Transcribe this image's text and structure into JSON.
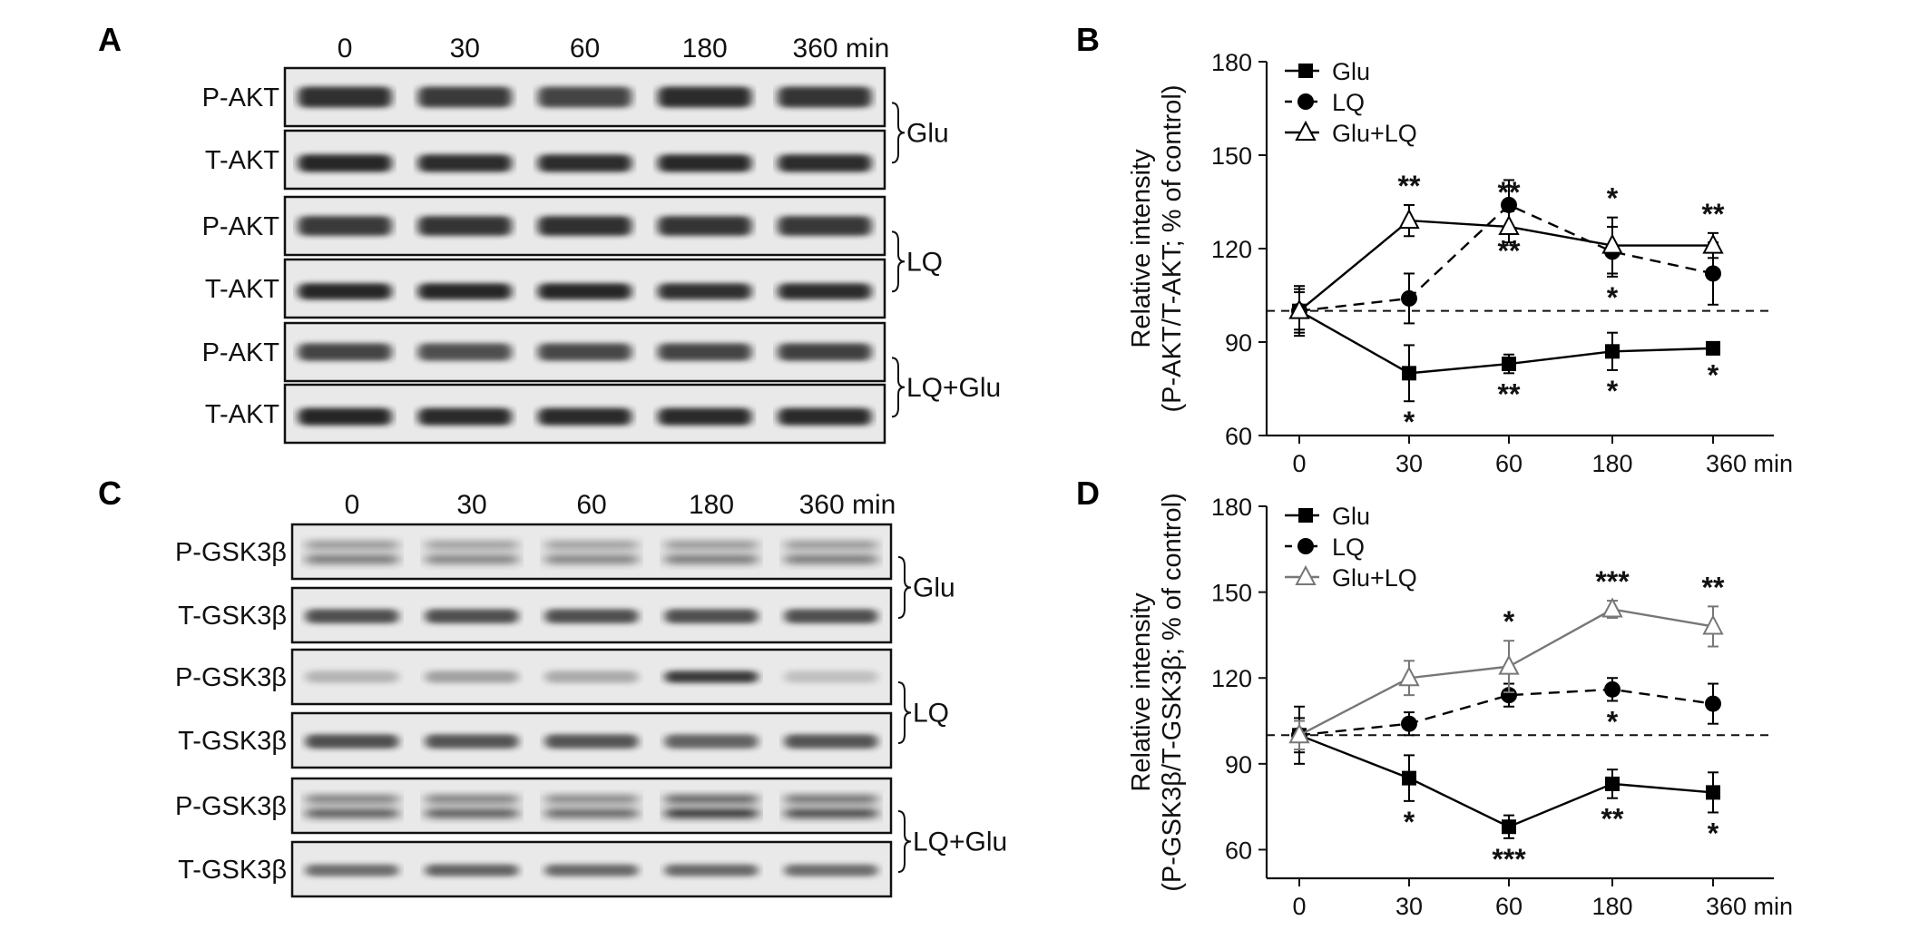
{
  "figure": {
    "panel_a": {
      "letter": "A",
      "time_labels": [
        "0",
        "30",
        "60",
        "180",
        "360 min"
      ],
      "row_labels": [
        "P-AKT",
        "T-AKT",
        "P-AKT",
        "T-AKT",
        "P-AKT",
        "T-AKT"
      ],
      "group_labels": [
        "Glu",
        "LQ",
        "LQ+Glu"
      ]
    },
    "panel_c": {
      "letter": "C",
      "time_labels": [
        "0",
        "30",
        "60",
        "180",
        "360 min"
      ],
      "row_labels": [
        "P-GSK3β",
        "T-GSK3β",
        "P-GSK3β",
        "T-GSK3β",
        "P-GSK3β",
        "T-GSK3β"
      ],
      "group_labels": [
        "Glu",
        "LQ",
        "LQ+Glu"
      ]
    }
  },
  "chart_data": [
    {
      "panel": "B",
      "type": "line",
      "categories": [
        "0",
        "30",
        "60",
        "180",
        "360 min"
      ],
      "ylabel_line1": "Relative intensity",
      "ylabel_line2": "(P-AKT/T-AKT; % of control)",
      "ylim": [
        60,
        180
      ],
      "yticks": [
        60,
        90,
        120,
        150,
        180
      ],
      "reference_line": 100,
      "legend_position": "top-left",
      "series": [
        {
          "name": "Glu",
          "marker": "square",
          "line": "solid",
          "color": "#000000",
          "values": [
            100,
            80,
            83,
            87,
            88
          ],
          "errors": [
            8,
            9,
            3,
            6,
            2
          ],
          "annotations": [
            "",
            "*",
            "**",
            "*",
            "*"
          ],
          "annotation_side": "below"
        },
        {
          "name": "LQ",
          "marker": "circle",
          "line": "dashed",
          "color": "#000000",
          "values": [
            100,
            104,
            134,
            119,
            112
          ],
          "errors": [
            7,
            8,
            8,
            8,
            10
          ],
          "annotations": [
            "",
            "",
            "**",
            "*",
            ""
          ],
          "annotation_side": "below"
        },
        {
          "name": "Glu+LQ",
          "marker": "triangle",
          "line": "solid",
          "color": "#000000",
          "values": [
            100,
            129,
            127,
            121,
            121
          ],
          "errors": [
            6,
            5,
            5,
            9,
            4
          ],
          "annotations": [
            "",
            "**",
            "**",
            "*",
            "**"
          ],
          "annotation_side": "above"
        }
      ]
    },
    {
      "panel": "D",
      "type": "line",
      "categories": [
        "0",
        "30",
        "60",
        "180",
        "360 min"
      ],
      "ylabel_line1": "Relative intensity",
      "ylabel_line2": "(P-GSK3β/T-GSK3β; % of control)",
      "ylim": [
        50,
        180
      ],
      "yticks": [
        60,
        90,
        120,
        150,
        180
      ],
      "reference_line": 100,
      "legend_position": "top-left",
      "series": [
        {
          "name": "Glu",
          "marker": "square",
          "line": "solid",
          "color": "#000000",
          "values": [
            100,
            85,
            68,
            83,
            80
          ],
          "errors": [
            10,
            8,
            4,
            5,
            7
          ],
          "annotations": [
            "",
            "*",
            "***",
            "**",
            "*"
          ],
          "annotation_side": "below"
        },
        {
          "name": "LQ",
          "marker": "circle",
          "line": "dashed",
          "color": "#000000",
          "values": [
            100,
            104,
            114,
            116,
            111
          ],
          "errors": [
            6,
            4,
            4,
            4,
            7
          ],
          "annotations": [
            "",
            "",
            "",
            "*",
            ""
          ],
          "annotation_side": "below"
        },
        {
          "name": "Glu+LQ",
          "marker": "triangle",
          "line": "solid",
          "color": "#777777",
          "values": [
            100,
            120,
            124,
            144,
            138
          ],
          "errors": [
            5,
            6,
            9,
            3,
            7
          ],
          "annotations": [
            "",
            "",
            "*",
            "***",
            "**"
          ],
          "annotation_side": "above"
        }
      ]
    }
  ]
}
